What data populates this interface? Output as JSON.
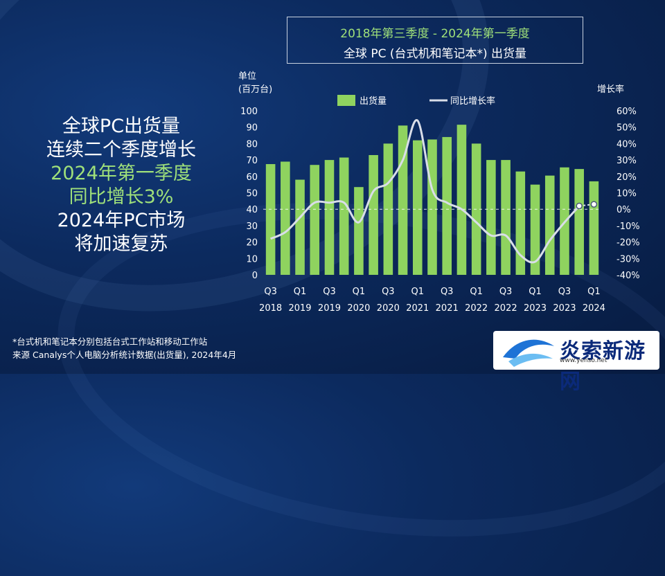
{
  "header": {
    "title_line1": "2018年第三季度 - 2024年第一季度",
    "title_line2": "全球 PC (台式机和笔记本*) 出货量"
  },
  "left_panel": {
    "line1": "全球PC出货量",
    "line2": "连续二个季度增长",
    "line3": "2024年第一季度",
    "line4": "同比增长3%",
    "line5": "2024年PC市场",
    "line6": "将加速复苏"
  },
  "footnote": {
    "line1": "*台式机和笔记本分别包括台式工作站和移动工作站",
    "line2": "来源 Canalys个人电脑分析统计数据(出货量), 2024年4月"
  },
  "watermark": {
    "text": "炎索新游网",
    "url": "www.yenso.net"
  },
  "colors": {
    "bar": "#8fd35f",
    "line": "#d9dee8",
    "accent_green": "#9fe07a"
  },
  "chart_data": {
    "type": "bar",
    "title": "全球 PC (台式机和笔记本*) 出货量",
    "ylabel_left_line1": "单位",
    "ylabel_left_line2": "(百万台)",
    "ylabel_right": "增长率",
    "ylim": [
      0,
      100
    ],
    "y2lim": [
      -40,
      60
    ],
    "yticks": [
      "0",
      "10",
      "20",
      "30",
      "40",
      "50",
      "60",
      "70",
      "80",
      "90",
      "100"
    ],
    "y2ticks": [
      "-40%",
      "-30%",
      "-20%",
      "-10%",
      "0%",
      "10%",
      "20%",
      "30%",
      "40%",
      "50%",
      "60%"
    ],
    "legend_position": "top",
    "categories": [
      "Q3 2018",
      "Q4 2018",
      "Q1 2019",
      "Q2 2019",
      "Q3 2019",
      "Q4 2019",
      "Q1 2020",
      "Q2 2020",
      "Q3 2020",
      "Q4 2020",
      "Q1 2021",
      "Q2 2021",
      "Q3 2021",
      "Q4 2021",
      "Q1 2022",
      "Q2 2022",
      "Q3 2022",
      "Q4 2022",
      "Q1 2023",
      "Q2 2023",
      "Q3 2023",
      "Q4 2023",
      "Q1 2024"
    ],
    "x_labels": [
      {
        "index": 0,
        "quarter": "Q3",
        "year": "2018"
      },
      {
        "index": 2,
        "quarter": "Q1",
        "year": "2019"
      },
      {
        "index": 4,
        "quarter": "Q3",
        "year": "2019"
      },
      {
        "index": 6,
        "quarter": "Q1",
        "year": "2020"
      },
      {
        "index": 8,
        "quarter": "Q3",
        "year": "2020"
      },
      {
        "index": 10,
        "quarter": "Q1",
        "year": "2021"
      },
      {
        "index": 12,
        "quarter": "Q3",
        "year": "2021"
      },
      {
        "index": 14,
        "quarter": "Q1",
        "year": "2022"
      },
      {
        "index": 16,
        "quarter": "Q3",
        "year": "2022"
      },
      {
        "index": 18,
        "quarter": "Q1",
        "year": "2023"
      },
      {
        "index": 20,
        "quarter": "Q3",
        "year": "2023"
      },
      {
        "index": 22,
        "quarter": "Q1",
        "year": "2024"
      }
    ],
    "series": [
      {
        "name": "出货量",
        "type": "bar",
        "axis": "left",
        "values": [
          67.5,
          69,
          58,
          67,
          70,
          71.5,
          53.5,
          73,
          80,
          91,
          82,
          82.5,
          84,
          91.5,
          80,
          70,
          70,
          63,
          55,
          60.5,
          65.5,
          64.5,
          57
        ]
      },
      {
        "name": "同比增长率",
        "type": "line",
        "axis": "right",
        "values": [
          -18,
          -14,
          -5,
          4,
          4,
          4,
          -8,
          11,
          16,
          30,
          54,
          12,
          4,
          0,
          -8,
          -16,
          -16,
          -28,
          -32,
          -19,
          -8,
          2,
          3
        ]
      }
    ]
  }
}
